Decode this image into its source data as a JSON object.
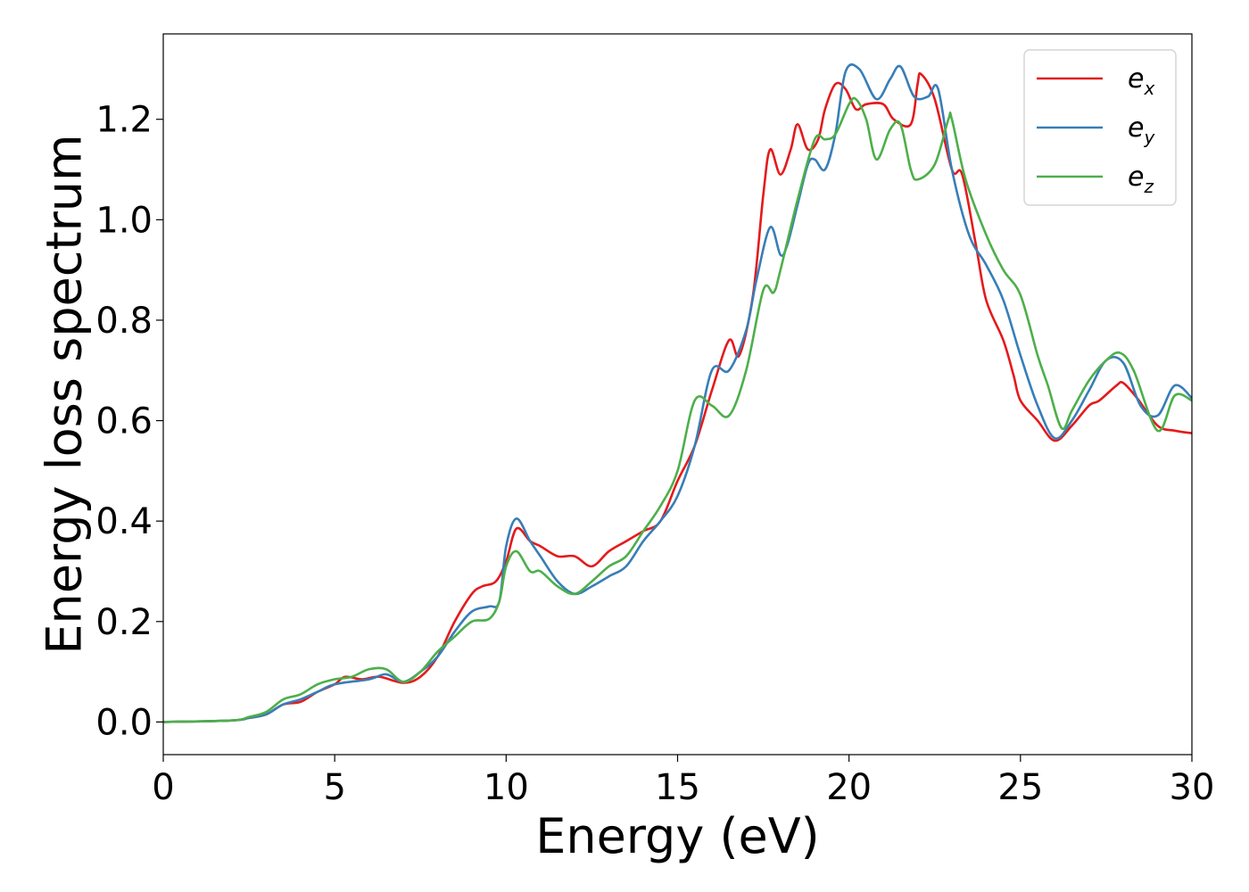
{
  "chart_data": {
    "type": "line",
    "title": "",
    "xlabel": "Energy (eV)",
    "ylabel": "Energy loss spectrum",
    "xlim": [
      0,
      30
    ],
    "ylim": [
      -0.065,
      1.37
    ],
    "xticks": [
      0,
      5,
      10,
      15,
      20,
      25,
      30
    ],
    "yticks": [
      0.0,
      0.2,
      0.4,
      0.6,
      0.8,
      1.0,
      1.2
    ],
    "xtick_labels": [
      "0",
      "5",
      "10",
      "15",
      "20",
      "25",
      "30"
    ],
    "ytick_labels": [
      "0.0",
      "0.2",
      "0.4",
      "0.6",
      "0.8",
      "1.0",
      "1.2"
    ],
    "grid": false,
    "legend_position": "top-right",
    "series": [
      {
        "name": "e",
        "name_sub": "x",
        "color": "#e41a1c",
        "points": [
          [
            0,
            0.0
          ],
          [
            2,
            0.003
          ],
          [
            2.5,
            0.008
          ],
          [
            3,
            0.015
          ],
          [
            3.5,
            0.035
          ],
          [
            4,
            0.04
          ],
          [
            4.5,
            0.06
          ],
          [
            5,
            0.075
          ],
          [
            5.3,
            0.09
          ],
          [
            5.8,
            0.085
          ],
          [
            6.3,
            0.09
          ],
          [
            7,
            0.078
          ],
          [
            7.5,
            0.09
          ],
          [
            8,
            0.13
          ],
          [
            8.5,
            0.2
          ],
          [
            9,
            0.255
          ],
          [
            9.3,
            0.27
          ],
          [
            9.7,
            0.28
          ],
          [
            10,
            0.32
          ],
          [
            10.3,
            0.385
          ],
          [
            10.7,
            0.36
          ],
          [
            11,
            0.35
          ],
          [
            11.5,
            0.33
          ],
          [
            12,
            0.33
          ],
          [
            12.5,
            0.31
          ],
          [
            13,
            0.34
          ],
          [
            13.5,
            0.36
          ],
          [
            14,
            0.38
          ],
          [
            14.5,
            0.4
          ],
          [
            15,
            0.48
          ],
          [
            15.5,
            0.55
          ],
          [
            16,
            0.66
          ],
          [
            16.5,
            0.76
          ],
          [
            16.8,
            0.73
          ],
          [
            17.2,
            0.85
          ],
          [
            17.5,
            1.05
          ],
          [
            17.7,
            1.14
          ],
          [
            18,
            1.09
          ],
          [
            18.3,
            1.14
          ],
          [
            18.5,
            1.19
          ],
          [
            18.8,
            1.14
          ],
          [
            19.1,
            1.16
          ],
          [
            19.3,
            1.22
          ],
          [
            19.6,
            1.27
          ],
          [
            19.9,
            1.26
          ],
          [
            20.2,
            1.22
          ],
          [
            20.5,
            1.23
          ],
          [
            21,
            1.23
          ],
          [
            21.3,
            1.2
          ],
          [
            21.8,
            1.19
          ],
          [
            22,
            1.27
          ],
          [
            22.1,
            1.29
          ],
          [
            22.5,
            1.24
          ],
          [
            23,
            1.1
          ],
          [
            23.3,
            1.09
          ],
          [
            23.7,
            0.95
          ],
          [
            24,
            0.84
          ],
          [
            24.5,
            0.76
          ],
          [
            24.8,
            0.69
          ],
          [
            25,
            0.64
          ],
          [
            25.5,
            0.6
          ],
          [
            26,
            0.56
          ],
          [
            26.5,
            0.59
          ],
          [
            27,
            0.63
          ],
          [
            27.3,
            0.64
          ],
          [
            27.8,
            0.67
          ],
          [
            28,
            0.675
          ],
          [
            28.4,
            0.645
          ],
          [
            29,
            0.59
          ],
          [
            29.5,
            0.58
          ],
          [
            30,
            0.575
          ]
        ]
      },
      {
        "name": "e",
        "name_sub": "y",
        "color": "#377eb8",
        "points": [
          [
            0,
            0.0
          ],
          [
            2,
            0.003
          ],
          [
            2.5,
            0.008
          ],
          [
            3,
            0.015
          ],
          [
            3.5,
            0.035
          ],
          [
            4,
            0.045
          ],
          [
            4.5,
            0.06
          ],
          [
            5,
            0.075
          ],
          [
            6,
            0.085
          ],
          [
            6.5,
            0.095
          ],
          [
            7,
            0.08
          ],
          [
            7.5,
            0.1
          ],
          [
            8,
            0.13
          ],
          [
            8.5,
            0.18
          ],
          [
            9,
            0.22
          ],
          [
            9.5,
            0.23
          ],
          [
            9.8,
            0.24
          ],
          [
            10,
            0.35
          ],
          [
            10.3,
            0.405
          ],
          [
            10.7,
            0.36
          ],
          [
            11,
            0.33
          ],
          [
            11.5,
            0.28
          ],
          [
            12,
            0.255
          ],
          [
            12.5,
            0.27
          ],
          [
            13,
            0.29
          ],
          [
            13.5,
            0.31
          ],
          [
            14,
            0.36
          ],
          [
            14.5,
            0.4
          ],
          [
            15,
            0.45
          ],
          [
            15.5,
            0.55
          ],
          [
            16,
            0.7
          ],
          [
            16.5,
            0.7
          ],
          [
            17,
            0.78
          ],
          [
            17.3,
            0.88
          ],
          [
            17.7,
            0.985
          ],
          [
            18,
            0.93
          ],
          [
            18.2,
            0.95
          ],
          [
            18.5,
            1.03
          ],
          [
            18.8,
            1.11
          ],
          [
            19,
            1.12
          ],
          [
            19.3,
            1.1
          ],
          [
            19.6,
            1.17
          ],
          [
            19.9,
            1.295
          ],
          [
            20.3,
            1.3
          ],
          [
            20.8,
            1.24
          ],
          [
            21.2,
            1.28
          ],
          [
            21.5,
            1.305
          ],
          [
            21.9,
            1.245
          ],
          [
            22.3,
            1.245
          ],
          [
            22.6,
            1.26
          ],
          [
            23,
            1.1
          ],
          [
            23.5,
            0.97
          ],
          [
            24,
            0.91
          ],
          [
            24.5,
            0.84
          ],
          [
            25,
            0.73
          ],
          [
            25.5,
            0.63
          ],
          [
            26,
            0.565
          ],
          [
            26.5,
            0.6
          ],
          [
            27,
            0.66
          ],
          [
            27.5,
            0.72
          ],
          [
            28,
            0.715
          ],
          [
            28.5,
            0.63
          ],
          [
            29,
            0.61
          ],
          [
            29.5,
            0.67
          ],
          [
            30,
            0.645
          ]
        ]
      },
      {
        "name": "e",
        "name_sub": "z",
        "color": "#4daf4a",
        "points": [
          [
            0,
            0.0
          ],
          [
            2,
            0.003
          ],
          [
            2.5,
            0.01
          ],
          [
            3,
            0.02
          ],
          [
            3.5,
            0.045
          ],
          [
            4,
            0.055
          ],
          [
            4.5,
            0.075
          ],
          [
            5,
            0.085
          ],
          [
            5.5,
            0.09
          ],
          [
            6,
            0.105
          ],
          [
            6.5,
            0.105
          ],
          [
            7,
            0.08
          ],
          [
            7.5,
            0.1
          ],
          [
            8,
            0.14
          ],
          [
            8.5,
            0.17
          ],
          [
            9,
            0.2
          ],
          [
            9.5,
            0.205
          ],
          [
            9.8,
            0.24
          ],
          [
            10,
            0.31
          ],
          [
            10.3,
            0.34
          ],
          [
            10.7,
            0.3
          ],
          [
            11,
            0.3
          ],
          [
            11.5,
            0.27
          ],
          [
            12,
            0.255
          ],
          [
            12.5,
            0.28
          ],
          [
            13,
            0.31
          ],
          [
            13.5,
            0.33
          ],
          [
            14,
            0.38
          ],
          [
            14.5,
            0.43
          ],
          [
            15,
            0.5
          ],
          [
            15.5,
            0.64
          ],
          [
            16,
            0.63
          ],
          [
            16.5,
            0.61
          ],
          [
            17,
            0.7
          ],
          [
            17.5,
            0.86
          ],
          [
            17.8,
            0.855
          ],
          [
            18,
            0.9
          ],
          [
            18.5,
            1.04
          ],
          [
            19,
            1.16
          ],
          [
            19.3,
            1.16
          ],
          [
            19.6,
            1.17
          ],
          [
            20,
            1.23
          ],
          [
            20.2,
            1.24
          ],
          [
            20.5,
            1.2
          ],
          [
            20.8,
            1.12
          ],
          [
            21.2,
            1.18
          ],
          [
            21.5,
            1.19
          ],
          [
            21.8,
            1.1
          ],
          [
            22,
            1.08
          ],
          [
            22.5,
            1.11
          ],
          [
            22.9,
            1.2
          ],
          [
            23,
            1.2
          ],
          [
            23.4,
            1.08
          ],
          [
            24,
            0.97
          ],
          [
            24.5,
            0.9
          ],
          [
            25,
            0.85
          ],
          [
            25.5,
            0.73
          ],
          [
            25.8,
            0.67
          ],
          [
            26.2,
            0.585
          ],
          [
            26.5,
            0.62
          ],
          [
            27,
            0.68
          ],
          [
            27.5,
            0.72
          ],
          [
            27.9,
            0.735
          ],
          [
            28.3,
            0.7
          ],
          [
            29,
            0.58
          ],
          [
            29.5,
            0.65
          ],
          [
            30,
            0.64
          ]
        ]
      }
    ]
  }
}
